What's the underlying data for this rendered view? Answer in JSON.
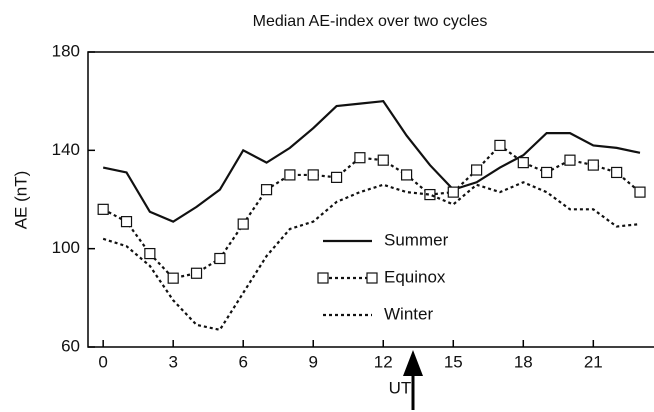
{
  "chart_data": {
    "type": "line",
    "title": "Median AE-index over two cycles",
    "x_label": "UT",
    "y_label": "AE (nT)",
    "x": [
      0,
      1,
      2,
      3,
      4,
      5,
      6,
      7,
      8,
      9,
      10,
      11,
      12,
      13,
      14,
      15,
      16,
      17,
      18,
      19,
      20,
      21,
      22,
      23
    ],
    "xlim": [
      -0.65,
      23.6
    ],
    "xticks": [
      0,
      3,
      6,
      9,
      12,
      15,
      18,
      21
    ],
    "ylim": [
      60,
      180
    ],
    "yticks": [
      60,
      100,
      140,
      180
    ],
    "legend": "center",
    "series": [
      {
        "name": "Summer",
        "color": "#111111",
        "line_style": "solid",
        "marker": "none",
        "values": [
          133,
          131,
          115,
          111,
          117,
          124,
          140,
          135,
          141,
          149,
          158,
          159,
          160,
          146,
          134,
          124,
          127,
          133,
          138,
          147,
          147,
          142,
          141,
          139
        ]
      },
      {
        "name": "Equinox",
        "color": "#111111",
        "line_style": "dotted",
        "marker": "square",
        "values": [
          116,
          111,
          98,
          88,
          90,
          96,
          110,
          124,
          130,
          130,
          129,
          137,
          136,
          130,
          122,
          123,
          132,
          142,
          135,
          131,
          136,
          134,
          131,
          123
        ]
      },
      {
        "name": "Winter",
        "color": "#111111",
        "line_style": "dotted",
        "marker": "none",
        "values": [
          104,
          101,
          93,
          79,
          69,
          67,
          82,
          97,
          108,
          111,
          119,
          123,
          126,
          123,
          122,
          118,
          126,
          123,
          127,
          123,
          116,
          116,
          109,
          110
        ]
      }
    ]
  }
}
